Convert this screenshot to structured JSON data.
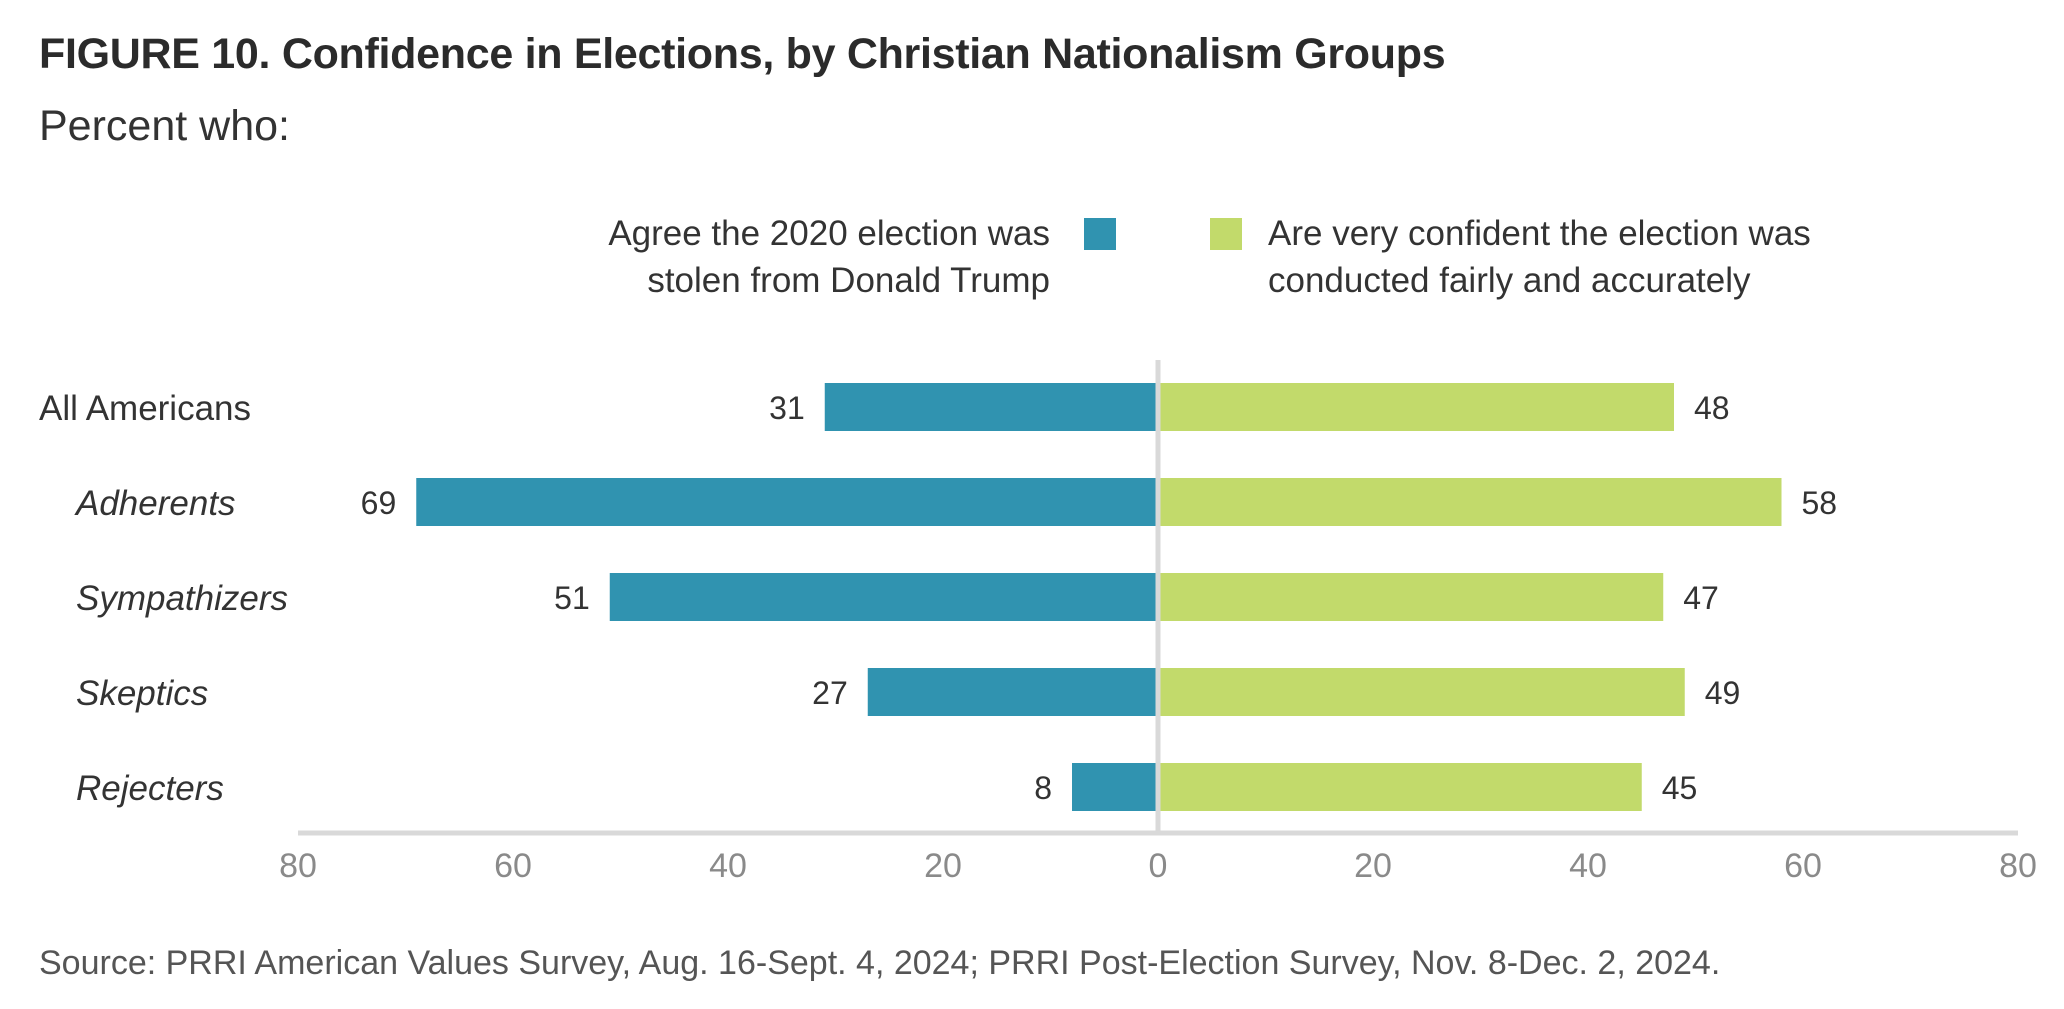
{
  "header": {
    "title": "FIGURE 10.  Confidence in Elections, by Christian Nationalism Groups",
    "subtitle": "Percent who:"
  },
  "legend": {
    "left_line1": "Agree the 2020 election was",
    "left_line2": "stolen from Donald Trump",
    "right_line1": "Are very confident the election was",
    "right_line2": "conducted fairly and accurately"
  },
  "colors": {
    "left_series": "#3093b0",
    "right_series": "#c2da6b",
    "axis": "#d9d9d9",
    "tick_text": "#8a8a8a"
  },
  "footer": {
    "source": "Source: PRRI American Values Survey, Aug. 16-Sept. 4, 2024; PRRI Post-Election Survey, Nov. 8-Dec. 2, 2024."
  },
  "chart_data": {
    "type": "bar",
    "orientation": "horizontal-diverging",
    "title": "FIGURE 10.  Confidence in Elections, by Christian Nationalism Groups",
    "subtitle": "Percent who:",
    "categories": [
      "All Americans",
      "Adherents",
      "Sympathizers",
      "Skeptics",
      "Rejecters"
    ],
    "category_italic": [
      false,
      true,
      true,
      true,
      true
    ],
    "series": [
      {
        "name": "Agree the 2020 election was stolen from Donald Trump",
        "side": "left",
        "color": "#3093b0",
        "values": [
          31,
          69,
          51,
          27,
          8
        ]
      },
      {
        "name": "Are very confident the election was conducted fairly and accurately",
        "side": "right",
        "color": "#c2da6b",
        "values": [
          48,
          58,
          47,
          49,
          45
        ]
      }
    ],
    "xlim": [
      -80,
      80
    ],
    "xticks": [
      -80,
      -60,
      -40,
      -20,
      0,
      20,
      40,
      60,
      80
    ],
    "xtick_labels": [
      "80",
      "60",
      "40",
      "20",
      "0",
      "20",
      "40",
      "60",
      "80"
    ],
    "grid": false,
    "legend_position": "top"
  }
}
